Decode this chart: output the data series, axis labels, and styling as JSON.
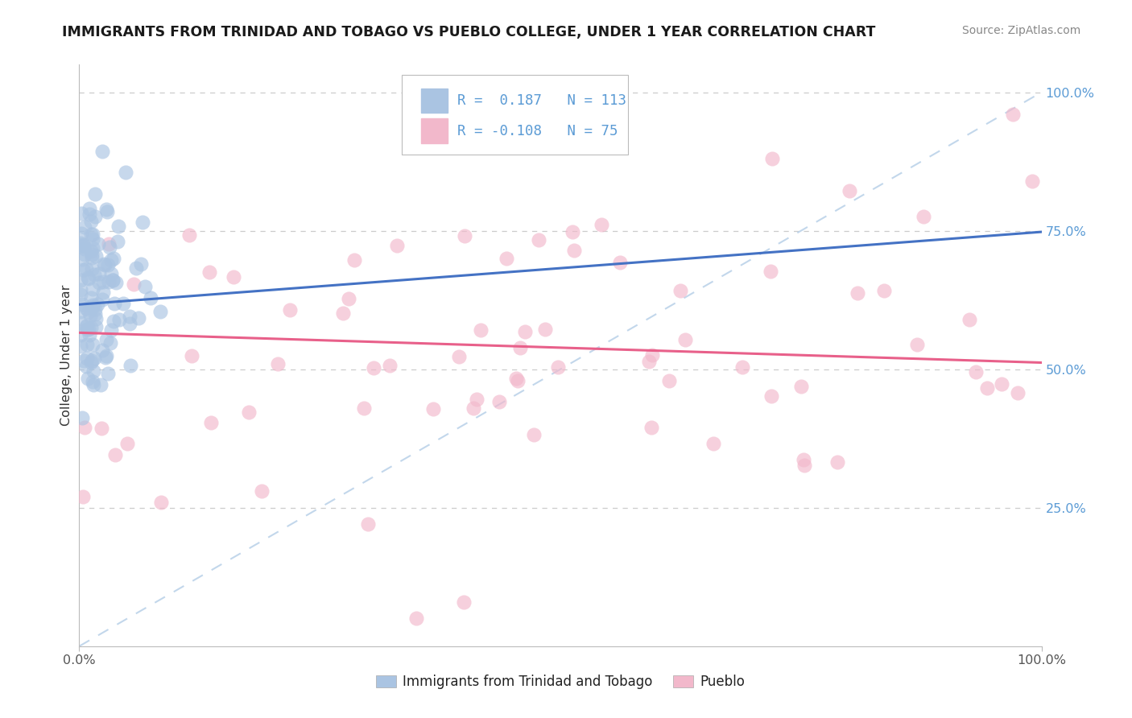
{
  "title": "IMMIGRANTS FROM TRINIDAD AND TOBAGO VS PUEBLO COLLEGE, UNDER 1 YEAR CORRELATION CHART",
  "source": "Source: ZipAtlas.com",
  "ylabel": "College, Under 1 year",
  "r1": 0.187,
  "n1": 113,
  "r2": -0.108,
  "n2": 75,
  "color_blue": "#aac4e2",
  "color_pink": "#f2b8cb",
  "line_blue": "#4472c4",
  "line_pink": "#e8608a",
  "line_dash_color": "#b8d0e8",
  "background": "#ffffff",
  "grid_color": "#cccccc",
  "ytick_color": "#5b9bd5",
  "xtick_color": "#555555",
  "title_color": "#1a1a1a",
  "source_color": "#888888",
  "ylabel_color": "#333333",
  "legend_text_color": "#5b9bd5",
  "bottom_legend_text_color": "#222222",
  "blue_line_y0": 0.617,
  "blue_line_y1": 0.748,
  "pink_line_y0": 0.566,
  "pink_line_y1": 0.512,
  "ylim": [
    0.0,
    1.05
  ],
  "xlim": [
    0.0,
    1.0
  ],
  "yticks": [
    0.25,
    0.5,
    0.75,
    1.0
  ],
  "ytick_labels": [
    "25.0%",
    "50.0%",
    "75.0%",
    "100.0%"
  ]
}
